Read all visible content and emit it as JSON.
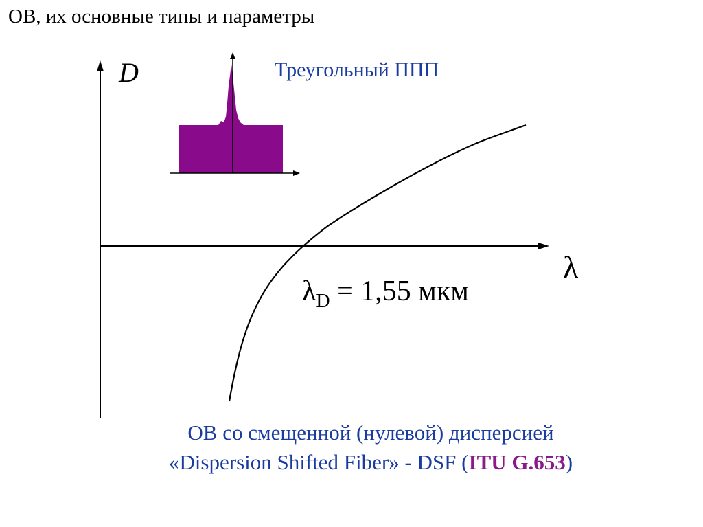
{
  "slide": {
    "title": "ОВ, их основные типы и параметры"
  },
  "diagram": {
    "y_axis_label": "D",
    "x_axis_label": "λ",
    "profile_label": "Треугольный ППП",
    "zero_dispersion": {
      "symbol": "λ",
      "subscript": "D",
      "equals": " = ",
      "value": "1,55 мкм"
    }
  },
  "caption": {
    "line1": "ОВ со смещенной (нулевой) дисперсией",
    "line2_prefix": "«Dispersion Shifted Fiber» - DSF (",
    "line2_standard": "ITU G.653",
    "line2_suffix": ")"
  },
  "colors": {
    "caption_text": "#1a3ca0",
    "standard_text": "#8a1a8a",
    "profile_fill": "#8a0a8c",
    "axes": "#000000"
  }
}
